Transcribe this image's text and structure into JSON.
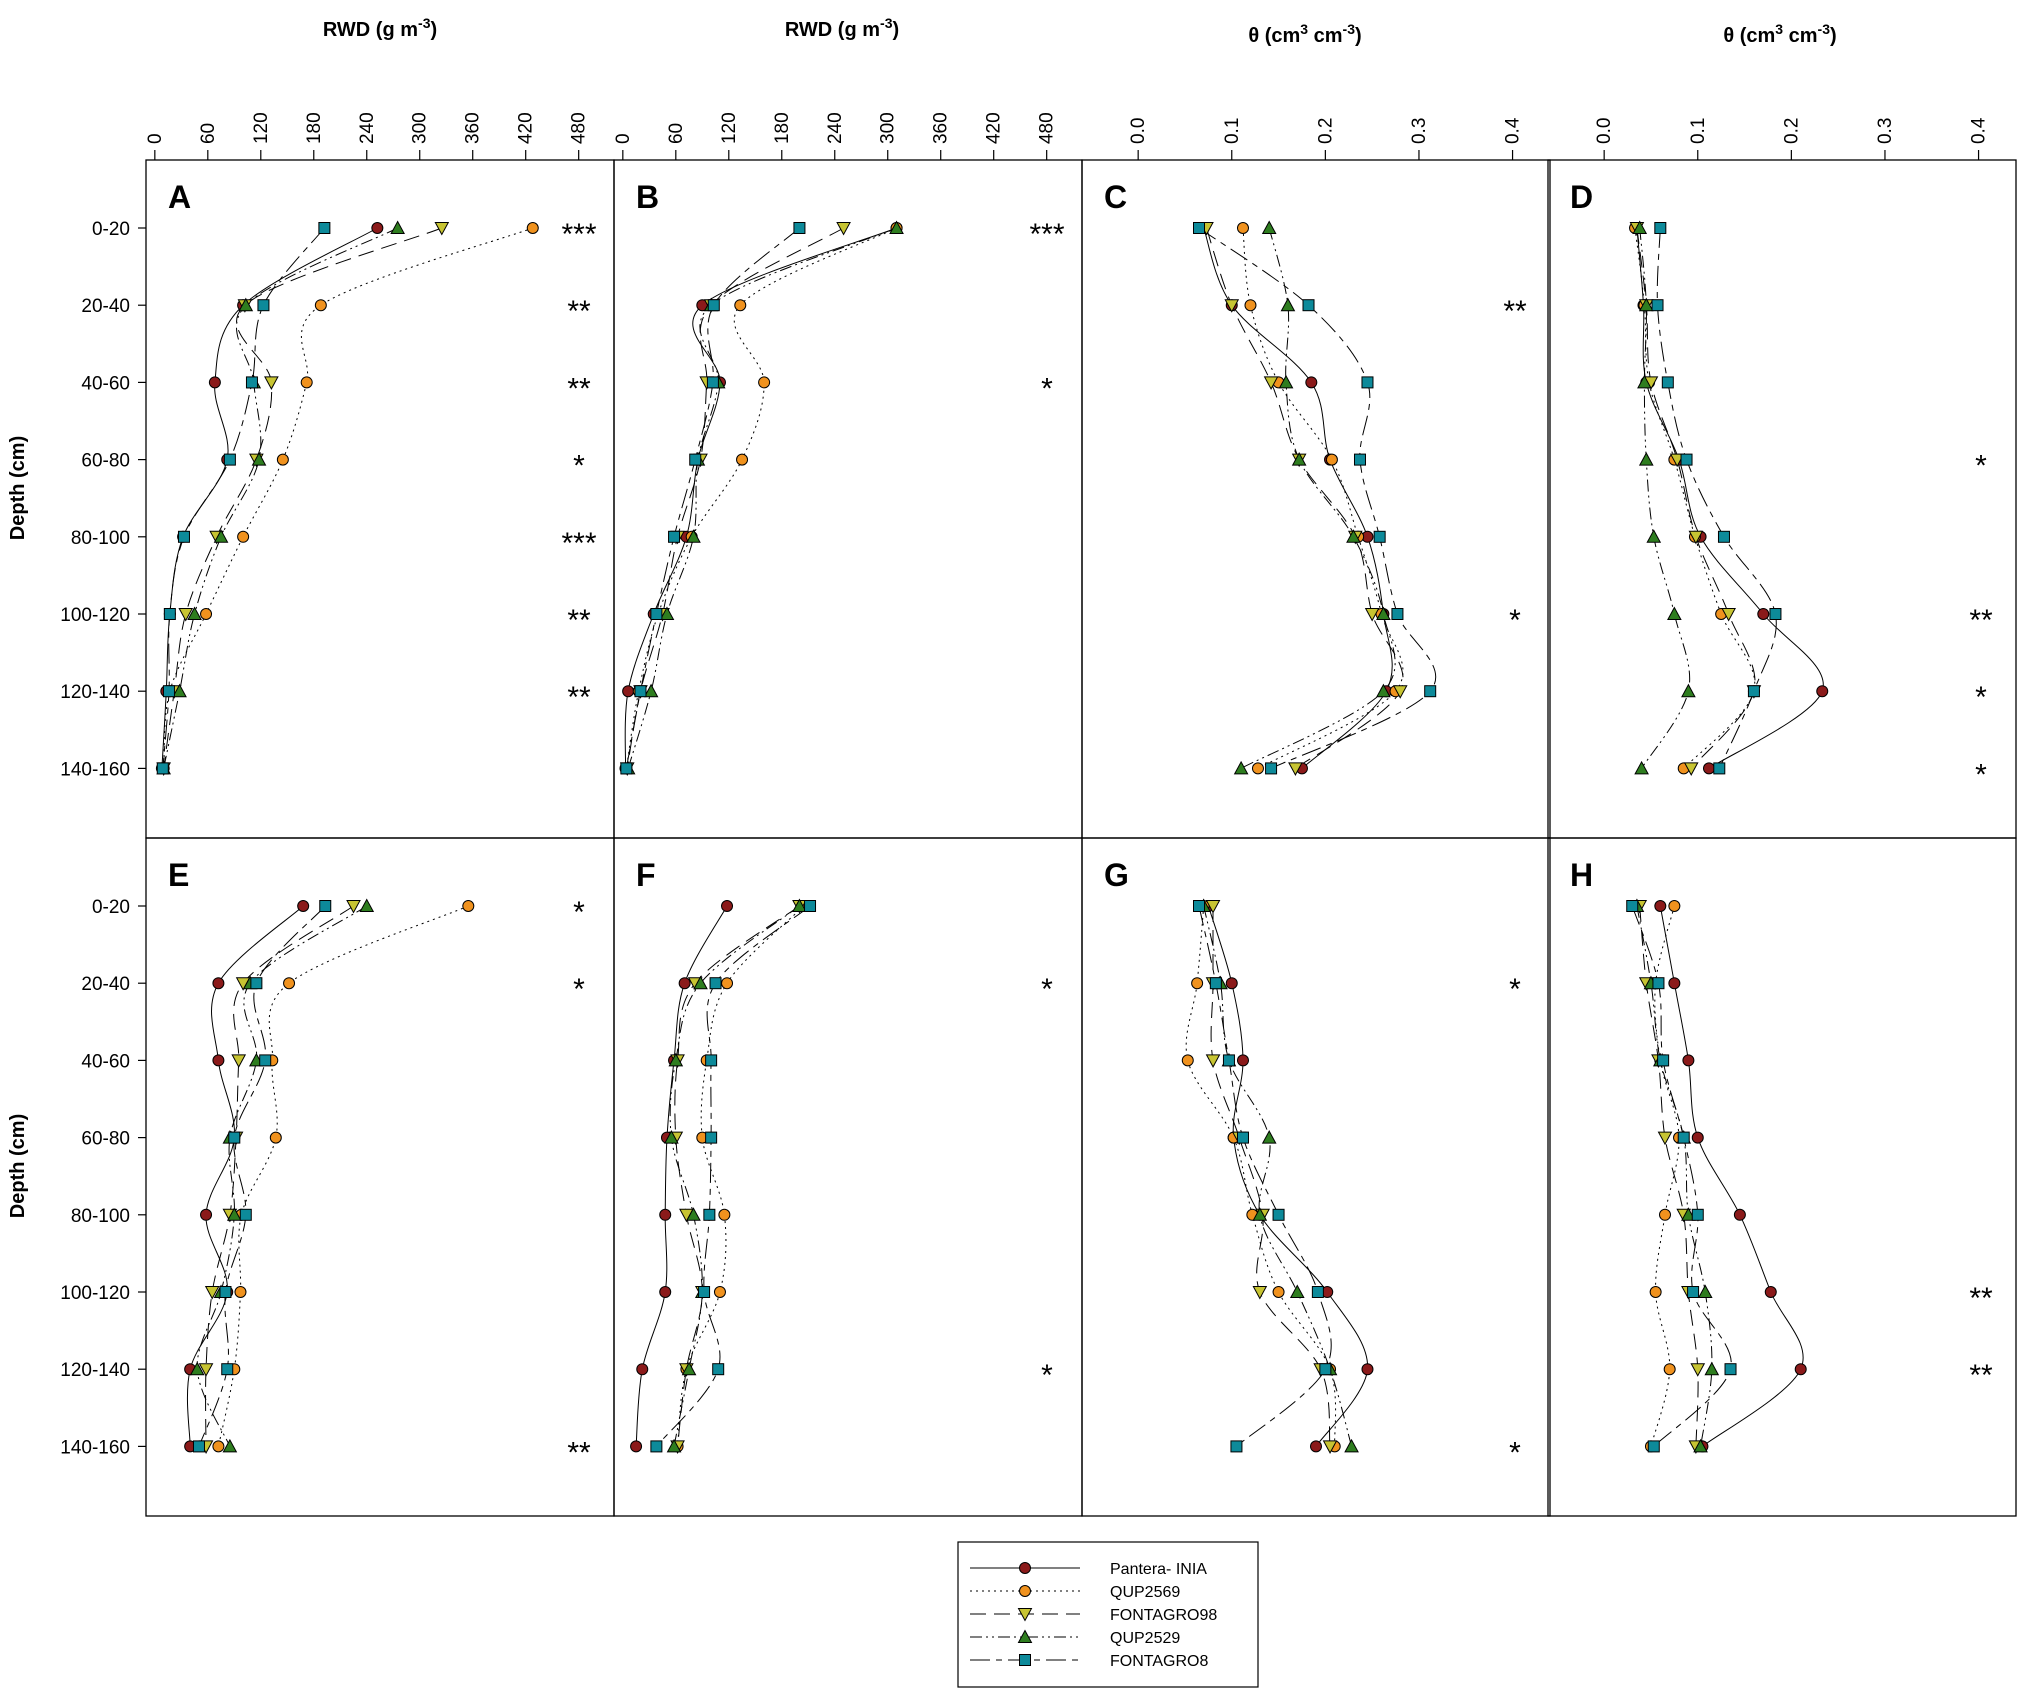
{
  "figure": {
    "top_axis_titles": [
      "RWD (g m-3)",
      "RWD (g m-3)",
      "θ (cm3 cm-3)",
      "θ (cm3 cm-3)"
    ],
    "y_axis_title": "Depth (cm)"
  },
  "chart_data": {
    "type": "line",
    "depth_categories": [
      "0-20",
      "20-40",
      "40-60",
      "60-80",
      "80-100",
      "100-120",
      "120-140",
      "140-160"
    ],
    "series": [
      {
        "name": "Pantera- INIA",
        "color": "#8b1a1a",
        "marker": "circle",
        "dash": "none"
      },
      {
        "name": "QUP2569",
        "color": "#f0921e",
        "marker": "circle",
        "dash": "dotted"
      },
      {
        "name": "FONTAGRO98",
        "color": "#c7c432",
        "marker": "triangle-down",
        "dash": "long-dash"
      },
      {
        "name": "QUP2529",
        "color": "#2e7d1f",
        "marker": "triangle-up",
        "dash": "dash-dot-dot"
      },
      {
        "name": "FONTAGRO8",
        "color": "#0d8a9a",
        "marker": "square",
        "dash": "long-short"
      }
    ],
    "axes": {
      "rwd": {
        "xlim": [
          -10,
          520
        ],
        "ticks": [
          0,
          60,
          120,
          180,
          240,
          300,
          360,
          420,
          480
        ]
      },
      "theta": {
        "xlim": [
          -0.06,
          0.44
        ],
        "ticks": [
          0.0,
          0.1,
          0.2,
          0.3,
          0.4
        ]
      }
    },
    "panels": [
      {
        "letter": "A",
        "axis": "rwd",
        "values": {
          "Pantera- INIA": [
            252,
            100,
            68,
            82,
            32,
            17,
            13,
            8
          ],
          "QUP2569": [
            428,
            188,
            172,
            145,
            100,
            58,
            17,
            10
          ],
          "FONTAGRO98": [
            325,
            102,
            132,
            115,
            70,
            35,
            22,
            10
          ],
          "QUP2529": [
            275,
            103,
            112,
            118,
            75,
            45,
            28,
            10
          ],
          "FONTAGRO8": [
            192,
            123,
            110,
            85,
            33,
            17,
            16,
            9
          ]
        },
        "significance": [
          "***",
          "**",
          "**",
          "*",
          "***",
          "**",
          "**",
          ""
        ]
      },
      {
        "letter": "B",
        "axis": "rwd",
        "values": {
          "Pantera- INIA": [
            310,
            90,
            110,
            85,
            72,
            35,
            6,
            3
          ],
          "QUP2569": [
            310,
            133,
            160,
            135,
            78,
            40,
            18,
            4
          ],
          "FONTAGRO98": [
            250,
            100,
            95,
            88,
            62,
            45,
            20,
            5
          ],
          "QUP2529": [
            310,
            100,
            108,
            85,
            80,
            50,
            32,
            6
          ],
          "FONTAGRO8": [
            200,
            103,
            102,
            82,
            58,
            38,
            20,
            4
          ]
        },
        "significance": [
          "***",
          "",
          "*",
          "",
          "",
          "",
          "",
          ""
        ]
      },
      {
        "letter": "C",
        "axis": "theta",
        "values": {
          "Pantera- INIA": [
            0.07,
            0.1,
            0.185,
            0.205,
            0.245,
            0.262,
            0.265,
            0.175
          ],
          "QUP2569": [
            0.112,
            0.12,
            0.15,
            0.207,
            0.235,
            0.26,
            0.275,
            0.128
          ],
          "FONTAGRO98": [
            0.073,
            0.1,
            0.142,
            0.172,
            0.232,
            0.25,
            0.28,
            0.168
          ],
          "QUP2529": [
            0.14,
            0.16,
            0.158,
            0.172,
            0.23,
            0.262,
            0.262,
            0.11
          ],
          "FONTAGRO8": [
            0.065,
            0.182,
            0.245,
            0.237,
            0.258,
            0.277,
            0.312,
            0.142
          ]
        },
        "significance": [
          "",
          "**",
          "",
          "",
          "",
          "*",
          "",
          ""
        ]
      },
      {
        "letter": "D",
        "axis": "theta",
        "values": {
          "Pantera- INIA": [
            0.035,
            0.042,
            0.045,
            0.08,
            0.103,
            0.17,
            0.233,
            0.112
          ],
          "QUP2569": [
            0.033,
            0.043,
            0.048,
            0.075,
            0.097,
            0.125,
            0.16,
            0.085
          ],
          "FONTAGRO98": [
            0.035,
            0.045,
            0.05,
            0.078,
            0.098,
            0.133,
            0.16,
            0.093
          ],
          "QUP2529": [
            0.038,
            0.045,
            0.043,
            0.045,
            0.053,
            0.075,
            0.09,
            0.04
          ],
          "FONTAGRO8": [
            0.06,
            0.057,
            0.068,
            0.088,
            0.128,
            0.183,
            0.16,
            0.123
          ]
        },
        "significance": [
          "",
          "",
          "",
          "*",
          "",
          "**",
          "*",
          "*"
        ]
      },
      {
        "letter": "E",
        "axis": "rwd",
        "values": {
          "Pantera- INIA": [
            168,
            72,
            72,
            90,
            58,
            82,
            40,
            40
          ],
          "QUP2569": [
            355,
            152,
            133,
            137,
            98,
            97,
            90,
            72
          ],
          "FONTAGRO98": [
            225,
            100,
            95,
            92,
            85,
            65,
            58,
            58
          ],
          "QUP2529": [
            240,
            108,
            115,
            85,
            90,
            75,
            48,
            85
          ],
          "FONTAGRO8": [
            193,
            115,
            125,
            90,
            103,
            80,
            82,
            50
          ]
        },
        "significance": [
          "*",
          "*",
          "",
          "",
          "",
          "",
          "",
          "**"
        ]
      },
      {
        "letter": "F",
        "axis": "rwd",
        "values": {
          "Pantera- INIA": [
            118,
            70,
            58,
            50,
            48,
            48,
            22,
            15
          ],
          "QUP2569": [
            205,
            118,
            95,
            90,
            115,
            110,
            72,
            62
          ],
          "FONTAGRO98": [
            200,
            82,
            62,
            60,
            72,
            90,
            72,
            62
          ],
          "QUP2529": [
            200,
            88,
            60,
            55,
            80,
            90,
            75,
            58
          ],
          "FONTAGRO8": [
            212,
            105,
            100,
            100,
            98,
            92,
            108,
            38
          ]
        },
        "significance": [
          "",
          "*",
          "",
          "",
          "",
          "",
          "*",
          ""
        ]
      },
      {
        "letter": "G",
        "axis": "theta",
        "values": {
          "Pantera- INIA": [
            0.075,
            0.1,
            0.112,
            0.102,
            0.13,
            0.202,
            0.245,
            0.19
          ],
          "QUP2569": [
            0.07,
            0.063,
            0.053,
            0.102,
            0.122,
            0.15,
            0.205,
            0.21
          ],
          "FONTAGRO98": [
            0.08,
            0.08,
            0.08,
            0.108,
            0.133,
            0.13,
            0.195,
            0.205
          ],
          "QUP2529": [
            0.07,
            0.088,
            0.097,
            0.14,
            0.13,
            0.17,
            0.205,
            0.228
          ],
          "FONTAGRO8": [
            0.065,
            0.083,
            0.097,
            0.112,
            0.15,
            0.192,
            0.2,
            0.105
          ]
        },
        "significance": [
          "",
          "*",
          "",
          "",
          "",
          "",
          "",
          "*"
        ]
      },
      {
        "letter": "H",
        "axis": "theta",
        "values": {
          "Pantera- INIA": [
            0.06,
            0.075,
            0.09,
            0.1,
            0.145,
            0.178,
            0.21,
            0.105
          ],
          "QUP2569": [
            0.075,
            0.055,
            0.06,
            0.08,
            0.065,
            0.055,
            0.07,
            0.05
          ],
          "FONTAGRO98": [
            0.038,
            0.045,
            0.058,
            0.065,
            0.085,
            0.09,
            0.1,
            0.098
          ],
          "QUP2529": [
            0.035,
            0.05,
            0.06,
            0.085,
            0.09,
            0.108,
            0.115,
            0.103
          ],
          "FONTAGRO8": [
            0.03,
            0.058,
            0.063,
            0.085,
            0.1,
            0.095,
            0.135,
            0.053
          ]
        },
        "significance": [
          "",
          "",
          "",
          "",
          "",
          "**",
          "**",
          ""
        ]
      }
    ]
  }
}
